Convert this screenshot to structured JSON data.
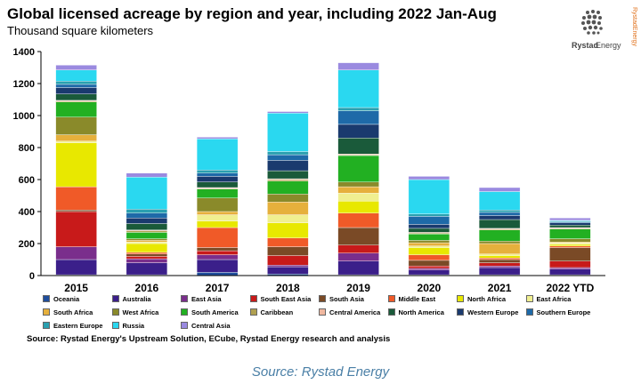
{
  "header": {
    "title": "Global licensed acreage by region and year, including 2022 Jan-Aug",
    "subtitle": "Thousand square kilometers"
  },
  "logo": {
    "line1": "Rystad",
    "line2": "Energy",
    "side_text": "RystadEnergy",
    "icon": "globe-dots-icon"
  },
  "footer": {
    "source_line": "Source: Rystad Energy's Upstream Solution, ECube, Rystad Energy research and analysis",
    "caption": "Source: Rystad Energy"
  },
  "chart_data": {
    "type": "bar",
    "stacked": true,
    "title": "Global licensed acreage by region and year, including 2022 Jan-Aug",
    "ylabel": "Thousand square kilometers",
    "xlabel": "",
    "ylim": [
      0,
      1400
    ],
    "yticks": [
      "0",
      "200",
      "400",
      "600",
      "800",
      "1000",
      "1200",
      "1400"
    ],
    "grid": false,
    "legend_position": "bottom",
    "categories": [
      "2015",
      "2016",
      "2017",
      "2018",
      "2019",
      "2020",
      "2021",
      "2022 YTD"
    ],
    "series": [
      {
        "name": "Oceania",
        "color": "#1f4e9c",
        "values": [
          5,
          5,
          20,
          10,
          5,
          5,
          5,
          5
        ]
      },
      {
        "name": "Australia",
        "color": "#3b1f8a",
        "values": [
          95,
          75,
          80,
          45,
          85,
          30,
          45,
          35
        ]
      },
      {
        "name": "East Asia",
        "color": "#7a2e8c",
        "values": [
          80,
          25,
          30,
          10,
          50,
          10,
          10,
          10
        ]
      },
      {
        "name": "South East Asia",
        "color": "#c81a1a",
        "values": [
          220,
          15,
          25,
          60,
          50,
          15,
          20,
          40
        ]
      },
      {
        "name": "South Asia",
        "color": "#7a4a26",
        "values": [
          10,
          15,
          20,
          55,
          110,
          35,
          20,
          85
        ]
      },
      {
        "name": "Middle East",
        "color": "#f05a28",
        "values": [
          145,
          10,
          125,
          55,
          90,
          35,
          10,
          10
        ]
      },
      {
        "name": "North Africa",
        "color": "#e8e800",
        "values": [
          275,
          55,
          40,
          95,
          75,
          45,
          15,
          10
        ]
      },
      {
        "name": "East Africa",
        "color": "#f0ef90",
        "values": [
          10,
          10,
          40,
          50,
          50,
          10,
          10,
          10
        ]
      },
      {
        "name": "South Africa",
        "color": "#e6b03c",
        "values": [
          40,
          10,
          20,
          80,
          40,
          20,
          65,
          5
        ]
      },
      {
        "name": "West Africa",
        "color": "#8a8a2a",
        "values": [
          110,
          10,
          85,
          50,
          30,
          15,
          15,
          20
        ]
      },
      {
        "name": "South America",
        "color": "#22b022",
        "values": [
          95,
          40,
          55,
          80,
          165,
          40,
          70,
          60
        ]
      },
      {
        "name": "Caribbean",
        "color": "#b0a050",
        "values": [
          5,
          10,
          5,
          10,
          5,
          5,
          5,
          5
        ]
      },
      {
        "name": "Central America",
        "color": "#f0b8a0",
        "values": [
          5,
          5,
          5,
          5,
          5,
          5,
          5,
          5
        ]
      },
      {
        "name": "North America",
        "color": "#1a5a3a",
        "values": [
          40,
          40,
          35,
          50,
          100,
          25,
          55,
          15
        ]
      },
      {
        "name": "Western Europe",
        "color": "#1a3a6e",
        "values": [
          40,
          35,
          35,
          65,
          85,
          25,
          25,
          15
        ]
      },
      {
        "name": "Southern Europe",
        "color": "#1e6aa8",
        "values": [
          20,
          30,
          20,
          35,
          85,
          50,
          20,
          5
        ]
      },
      {
        "name": "Eastern Europe",
        "color": "#2aa0b0",
        "values": [
          20,
          25,
          20,
          20,
          20,
          15,
          15,
          5
        ]
      },
      {
        "name": "Russia",
        "color": "#2ad8f0",
        "values": [
          70,
          200,
          195,
          240,
          235,
          215,
          115,
          5
        ]
      },
      {
        "name": "Central Asia",
        "color": "#9a8ae0",
        "values": [
          30,
          25,
          10,
          10,
          45,
          20,
          25,
          15
        ]
      }
    ]
  }
}
